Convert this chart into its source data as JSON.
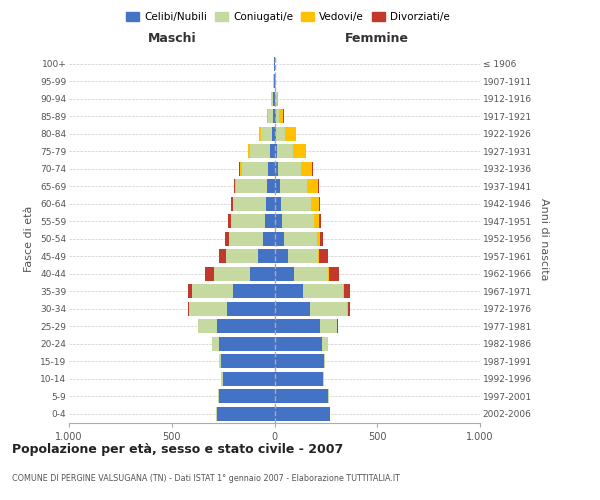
{
  "age_groups": [
    "0-4",
    "5-9",
    "10-14",
    "15-19",
    "20-24",
    "25-29",
    "30-34",
    "35-39",
    "40-44",
    "45-49",
    "50-54",
    "55-59",
    "60-64",
    "65-69",
    "70-74",
    "75-79",
    "80-84",
    "85-89",
    "90-94",
    "95-99",
    "100+"
  ],
  "birth_years": [
    "2002-2006",
    "1997-2001",
    "1992-1996",
    "1987-1991",
    "1982-1986",
    "1977-1981",
    "1972-1976",
    "1967-1971",
    "1962-1966",
    "1957-1961",
    "1952-1956",
    "1947-1951",
    "1942-1946",
    "1937-1941",
    "1932-1936",
    "1927-1931",
    "1922-1926",
    "1917-1921",
    "1912-1916",
    "1907-1911",
    "≤ 1906"
  ],
  "maschi": {
    "celibi": [
      280,
      270,
      250,
      260,
      270,
      280,
      230,
      200,
      120,
      80,
      55,
      45,
      40,
      35,
      30,
      20,
      12,
      8,
      5,
      3,
      2
    ],
    "coniugati": [
      3,
      5,
      8,
      10,
      35,
      90,
      185,
      200,
      175,
      155,
      165,
      165,
      160,
      150,
      130,
      100,
      55,
      25,
      10,
      3,
      1
    ],
    "vedovi": [
      0,
      0,
      0,
      0,
      0,
      0,
      0,
      1,
      1,
      1,
      1,
      2,
      3,
      5,
      8,
      8,
      10,
      5,
      3,
      1,
      0
    ],
    "divorziati": [
      0,
      0,
      0,
      0,
      1,
      3,
      8,
      20,
      40,
      35,
      20,
      15,
      8,
      5,
      5,
      2,
      0,
      0,
      0,
      0,
      0
    ]
  },
  "femmine": {
    "nubili": [
      270,
      260,
      235,
      240,
      230,
      220,
      175,
      140,
      95,
      65,
      45,
      35,
      30,
      25,
      18,
      12,
      8,
      5,
      3,
      2,
      1
    ],
    "coniugate": [
      2,
      3,
      5,
      8,
      30,
      85,
      180,
      195,
      165,
      145,
      160,
      155,
      150,
      135,
      110,
      80,
      45,
      18,
      8,
      2,
      1
    ],
    "vedove": [
      0,
      0,
      0,
      0,
      0,
      1,
      1,
      3,
      5,
      8,
      15,
      25,
      35,
      50,
      55,
      60,
      50,
      20,
      8,
      2,
      0
    ],
    "divorziate": [
      0,
      0,
      0,
      0,
      1,
      3,
      10,
      30,
      50,
      40,
      18,
      12,
      8,
      5,
      3,
      2,
      2,
      1,
      0,
      0,
      0
    ]
  },
  "colors": {
    "celibi": "#4472c4",
    "coniugati": "#c5d9a0",
    "vedovi": "#ffc000",
    "divorziati": "#c0392b"
  },
  "xlim": 1000,
  "title": "Popolazione per età, sesso e stato civile - 2007",
  "subtitle": "COMUNE DI PERGINE VALSUGANA (TN) - Dati ISTAT 1° gennaio 2007 - Elaborazione TUTTITALIA.IT",
  "ylabel_left": "Fasce di età",
  "ylabel_right": "Anni di nascita",
  "xlabel_left": "Maschi",
  "xlabel_right": "Femmine",
  "legend_labels": [
    "Celibi/Nubili",
    "Coniugati/e",
    "Vedovi/e",
    "Divorziati/e"
  ],
  "background_color": "#ffffff",
  "grid_color": "#cccccc"
}
